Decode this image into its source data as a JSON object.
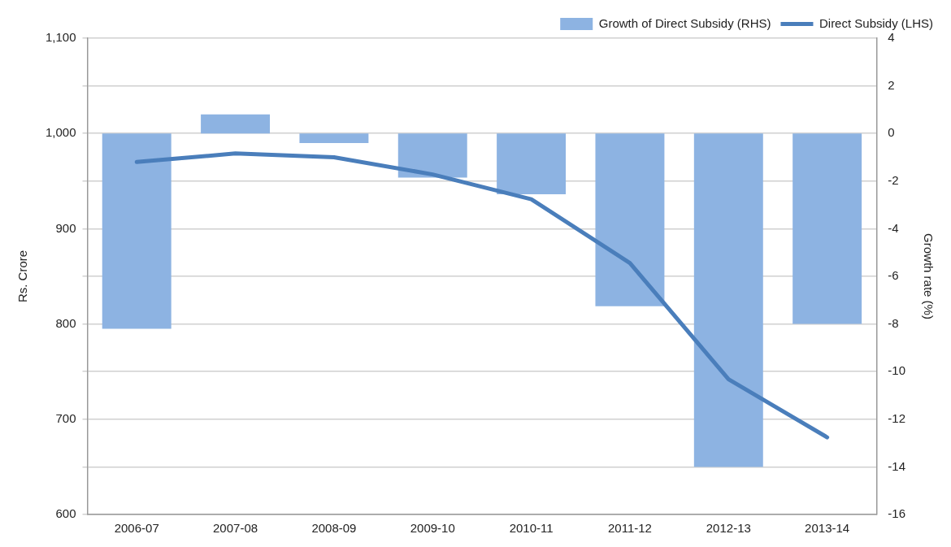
{
  "chart_data": {
    "type": "bar",
    "categories": [
      "2006-07",
      "2007-08",
      "2008-09",
      "2009-10",
      "2010-11",
      "2011-12",
      "2012-13",
      "2013-14"
    ],
    "series": [
      {
        "name": "Growth of Direct Subsidy (RHS)",
        "axis": "y2",
        "color": "#8db3e2",
        "values": [
          -8.2,
          0.8,
          -0.4,
          -1.85,
          -2.55,
          -7.25,
          -14.0,
          -8.0
        ]
      },
      {
        "name": "Direct Subsidy (LHS)",
        "type": "line",
        "axis": "y",
        "color": "#4a7ebb",
        "values": [
          970,
          979,
          975,
          957,
          931,
          864,
          742,
          681
        ]
      }
    ],
    "ylabel": "Rs. Crore",
    "y2label": "Growth rate (%)",
    "ylim": [
      600,
      1100
    ],
    "yticks": [
      600,
      {
        "value": 650,
        "label": null
      },
      700,
      {
        "value": 750,
        "label": null
      },
      800,
      {
        "value": 850,
        "label": null
      },
      900,
      {
        "value": 950,
        "label": null
      },
      {
        "value": 1000,
        "label": "1,000"
      },
      {
        "value": 1050,
        "label": null
      },
      {
        "value": 1100,
        "label": "1,100"
      }
    ],
    "y2lim": [
      -16,
      4
    ],
    "y2ticks": [
      -16,
      -14,
      -12,
      -10,
      -8,
      -6,
      -4,
      -2,
      0,
      2,
      4
    ],
    "grid": "y",
    "legend": "top right",
    "marker": "none",
    "line_style": "solid"
  }
}
